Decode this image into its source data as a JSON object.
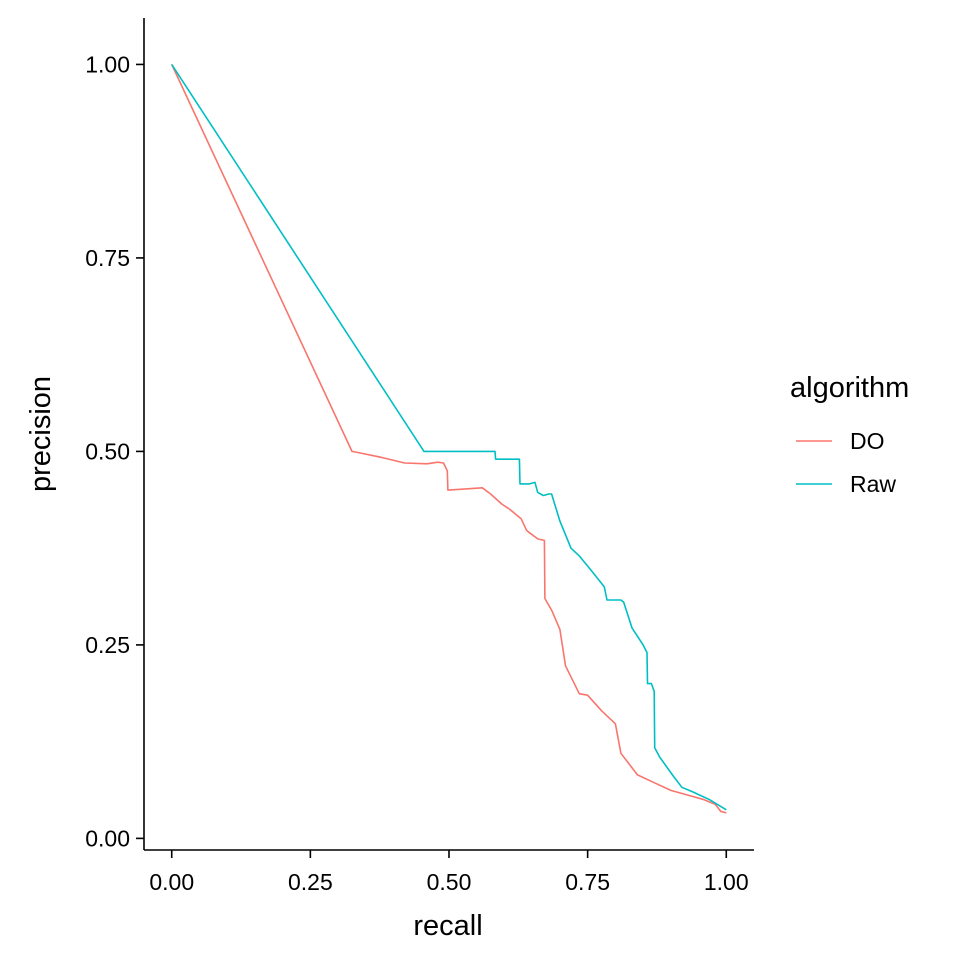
{
  "chart_data": {
    "type": "line",
    "title": "",
    "xlabel": "recall",
    "ylabel": "precision",
    "xlim": [
      -0.05,
      1.05
    ],
    "ylim": [
      -0.015,
      1.06
    ],
    "xticks": [
      0,
      0.25,
      0.5,
      0.75,
      1
    ],
    "yticks": [
      0,
      0.25,
      0.5,
      0.75,
      1
    ],
    "xtick_labels": [
      "0.00",
      "0.25",
      "0.50",
      "0.75",
      "1.00"
    ],
    "ytick_labels": [
      "0.00",
      "0.25",
      "0.50",
      "0.75",
      "1.00"
    ],
    "grid": false,
    "legend": {
      "title": "algorithm",
      "position": "right"
    },
    "series": [
      {
        "name": "DO",
        "color": "#F8766D",
        "points": [
          [
            0.0,
            1.0
          ],
          [
            0.325,
            0.5
          ],
          [
            0.34,
            0.498
          ],
          [
            0.38,
            0.492
          ],
          [
            0.42,
            0.485
          ],
          [
            0.46,
            0.484
          ],
          [
            0.48,
            0.486
          ],
          [
            0.49,
            0.485
          ],
          [
            0.497,
            0.475
          ],
          [
            0.498,
            0.45
          ],
          [
            0.52,
            0.451
          ],
          [
            0.56,
            0.453
          ],
          [
            0.575,
            0.445
          ],
          [
            0.595,
            0.432
          ],
          [
            0.61,
            0.425
          ],
          [
            0.63,
            0.413
          ],
          [
            0.64,
            0.398
          ],
          [
            0.645,
            0.395
          ],
          [
            0.66,
            0.387
          ],
          [
            0.672,
            0.385
          ],
          [
            0.673,
            0.31
          ],
          [
            0.685,
            0.295
          ],
          [
            0.7,
            0.27
          ],
          [
            0.71,
            0.223
          ],
          [
            0.735,
            0.187
          ],
          [
            0.75,
            0.185
          ],
          [
            0.775,
            0.165
          ],
          [
            0.8,
            0.148
          ],
          [
            0.81,
            0.11
          ],
          [
            0.84,
            0.082
          ],
          [
            0.87,
            0.072
          ],
          [
            0.9,
            0.062
          ],
          [
            0.93,
            0.056
          ],
          [
            0.96,
            0.05
          ],
          [
            0.98,
            0.044
          ],
          [
            0.99,
            0.035
          ],
          [
            1.0,
            0.033
          ]
        ]
      },
      {
        "name": "Raw",
        "color": "#00BFC4",
        "points": [
          [
            0.0,
            1.0
          ],
          [
            0.455,
            0.5
          ],
          [
            0.583,
            0.5
          ],
          [
            0.584,
            0.49
          ],
          [
            0.627,
            0.49
          ],
          [
            0.628,
            0.458
          ],
          [
            0.645,
            0.458
          ],
          [
            0.655,
            0.46
          ],
          [
            0.66,
            0.447
          ],
          [
            0.67,
            0.443
          ],
          [
            0.68,
            0.445
          ],
          [
            0.685,
            0.445
          ],
          [
            0.7,
            0.41
          ],
          [
            0.72,
            0.375
          ],
          [
            0.735,
            0.365
          ],
          [
            0.76,
            0.343
          ],
          [
            0.78,
            0.325
          ],
          [
            0.785,
            0.308
          ],
          [
            0.81,
            0.308
          ],
          [
            0.815,
            0.305
          ],
          [
            0.83,
            0.272
          ],
          [
            0.85,
            0.25
          ],
          [
            0.857,
            0.24
          ],
          [
            0.858,
            0.2
          ],
          [
            0.865,
            0.2
          ],
          [
            0.87,
            0.19
          ],
          [
            0.871,
            0.117
          ],
          [
            0.88,
            0.105
          ],
          [
            0.905,
            0.08
          ],
          [
            0.92,
            0.066
          ],
          [
            0.94,
            0.06
          ],
          [
            0.97,
            0.05
          ],
          [
            1.0,
            0.037
          ]
        ]
      }
    ]
  }
}
